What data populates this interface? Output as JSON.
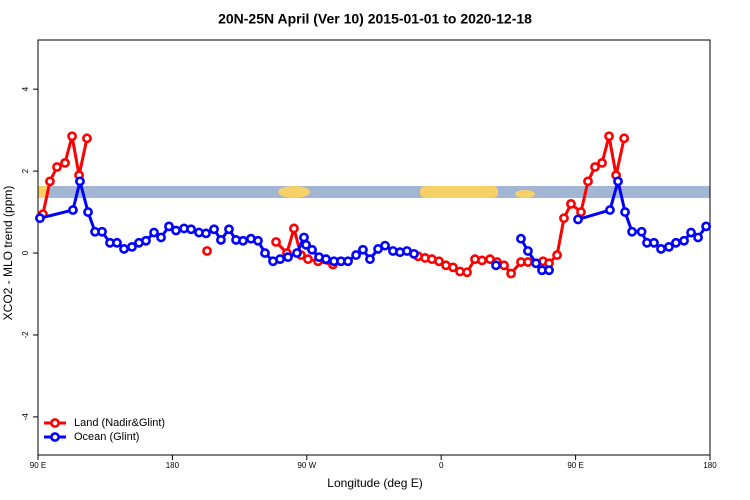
{
  "chart_data": {
    "type": "line",
    "title": "20N-25N April (Ver 10)   2015-01-01 to 2020-12-18",
    "x_label": "Longitude (deg E)",
    "y_label": "XCO2 - MLO trend (ppm)",
    "xlim": [
      90,
      540
    ],
    "ylim": [
      -4.93,
      5.2
    ],
    "xticks": [
      {
        "value": 90,
        "label": "90 E"
      },
      180,
      {
        "value": 270,
        "label": "90 W"
      },
      {
        "value": 360,
        "label": "0"
      },
      {
        "value": 450,
        "label": "90 E"
      },
      {
        "value": 540,
        "label": "180"
      }
    ],
    "yticks": [
      -4,
      -2,
      0,
      2,
      4
    ],
    "legend": "bottom-left",
    "series": [
      {
        "name": "Land (Nadir&Glint)",
        "color": "#ff0000",
        "x": [
          93.3,
          98.0,
          102.7,
          108.1,
          112.8,
          117.5,
          122.8,
          null,
          203.2,
          null,
          249.4,
          256.7,
          261.4,
          266.1,
          270.8,
          277.5,
          287.5,
          null,
          344.5,
          349.2,
          353.8,
          358.5,
          363.2,
          367.9,
          372.6,
          377.3,
          382.6,
          387.3,
          392.7,
          397.4,
          402.1,
          406.8,
          413.4,
          418.1,
          428.2,
          432.2,
          437.6,
          442.2,
          446.9,
          453.6,
          458.3,
          463.0,
          467.7,
          472.4,
          477.1,
          482.5
        ],
        "values": [
          0.95,
          1.75,
          2.1,
          2.2,
          2.85,
          1.9,
          2.8,
          null,
          0.05,
          null,
          0.27,
          0.0,
          0.6,
          -0.05,
          -0.15,
          -0.2,
          -0.28,
          null,
          -0.08,
          -0.12,
          -0.15,
          -0.2,
          -0.3,
          -0.35,
          -0.45,
          -0.47,
          -0.15,
          -0.18,
          -0.15,
          -0.22,
          -0.3,
          -0.5,
          -0.22,
          -0.22,
          -0.2,
          -0.25,
          -0.05,
          0.85,
          1.2,
          1.0,
          1.75,
          2.1,
          2.2,
          2.85,
          1.9,
          2.8
        ]
      },
      {
        "name": "Ocean (Glint)",
        "color": "#0000ff",
        "x": [
          91.3,
          113.4,
          118.1,
          123.5,
          128.2,
          132.9,
          138.2,
          142.9,
          147.6,
          152.9,
          157.6,
          162.3,
          167.7,
          172.4,
          177.7,
          182.4,
          187.8,
          192.5,
          197.8,
          202.5,
          207.9,
          212.5,
          217.9,
          222.6,
          227.3,
          232.6,
          237.3,
          242.0,
          247.4,
          252.1,
          257.4,
          263.4,
          268.1,
          269.5,
          273.5,
          278.2,
          282.9,
          288.2,
          292.9,
          297.6,
          303.0,
          307.6,
          312.3,
          317.7,
          322.4,
          327.7,
          332.4,
          337.1,
          341.8,
          null,
          396.7,
          null,
          413.4,
          418.1,
          423.5,
          427.5,
          432.2,
          null,
          451.6,
          473.0,
          478.4,
          483.1,
          487.8,
          494.2,
          497.8,
          502.5,
          507.2,
          512.5,
          517.2,
          522.6,
          527.3,
          532.0,
          537.4
        ],
        "values": [
          0.85,
          1.05,
          1.75,
          1.0,
          0.52,
          0.52,
          0.25,
          0.25,
          0.1,
          0.15,
          0.25,
          0.3,
          0.5,
          0.38,
          0.65,
          0.55,
          0.6,
          0.58,
          0.5,
          0.48,
          0.58,
          0.32,
          0.58,
          0.32,
          0.3,
          0.35,
          0.3,
          0.0,
          -0.2,
          -0.15,
          -0.1,
          0.0,
          0.38,
          0.2,
          0.08,
          -0.1,
          -0.15,
          -0.2,
          -0.2,
          -0.2,
          -0.05,
          0.08,
          -0.15,
          0.1,
          0.18,
          0.05,
          0.02,
          0.05,
          -0.02,
          null,
          -0.3,
          null,
          0.35,
          0.05,
          -0.25,
          -0.42,
          -0.42,
          null,
          0.82,
          1.05,
          1.75,
          1.0,
          0.52,
          0.52,
          0.25,
          0.25,
          0.1,
          0.15,
          0.25,
          0.3,
          0.5,
          0.38,
          0.65
        ]
      }
    ]
  }
}
